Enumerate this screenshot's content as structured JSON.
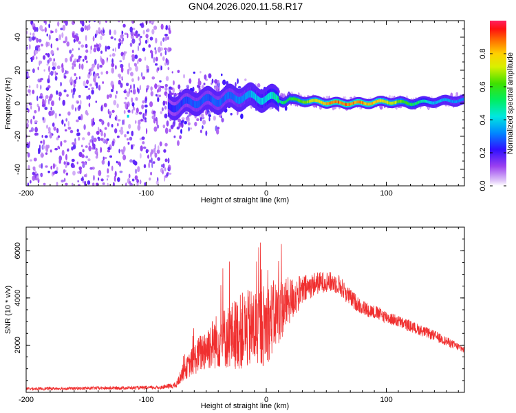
{
  "title": "GN04.2026.020.11.58.R17",
  "chart_data": [
    {
      "type": "heatmap",
      "name": "spectrogram",
      "xlabel": "Height of straight line (km)",
      "ylabel": "Frequency (Hz)",
      "xlim": [
        -200,
        165
      ],
      "ylim": [
        -50,
        50
      ],
      "xticks": [
        -200,
        -100,
        0,
        100
      ],
      "xtick_labels": [
        "-200",
        "-100",
        "0",
        "100"
      ],
      "yticks": [
        -40,
        -20,
        0,
        20,
        40
      ],
      "ytick_labels": [
        "-40",
        "-20",
        "0",
        "20",
        "40"
      ],
      "colorbar": {
        "label": "Normalized spectral amplitude",
        "range": [
          0,
          1
        ],
        "ticks": [
          0,
          0.2,
          0.4,
          0.6,
          0.8
        ],
        "tick_labels": [
          "0.0",
          "0.2",
          "0.4",
          "0.6",
          "0.8"
        ]
      },
      "signal_track": {
        "description_x": [
          -80,
          -60,
          -40,
          -20,
          0,
          20,
          40,
          60,
          80,
          100,
          120,
          140,
          165
        ],
        "frequency_hz": [
          -2,
          1,
          2,
          4,
          3,
          2,
          1,
          0,
          0,
          1,
          0,
          1,
          2
        ],
        "peak_amplitude": [
          0.25,
          0.3,
          0.3,
          0.35,
          0.45,
          0.6,
          0.8,
          0.95,
          0.9,
          0.8,
          0.6,
          0.4,
          0.35
        ]
      }
    },
    {
      "type": "line",
      "name": "snr",
      "xlabel": "Height of straight line (km)",
      "ylabel": "SNR (10 * v/v)",
      "xlim": [
        -200,
        165
      ],
      "ylim": [
        0,
        7000
      ],
      "xticks": [
        -200,
        -100,
        0,
        100
      ],
      "xtick_labels": [
        "-200",
        "-100",
        "0",
        "100"
      ],
      "yticks": [
        2000,
        4000,
        6000
      ],
      "ytick_labels": [
        "2000",
        "4000",
        "6000"
      ],
      "color": "#f03030",
      "envelope": {
        "x": [
          -200,
          -90,
          -75,
          -70,
          -60,
          -50,
          -40,
          -30,
          -20,
          -10,
          0,
          10,
          20,
          30,
          40,
          50,
          60,
          70,
          80,
          100,
          120,
          140,
          165
        ],
        "mean": [
          150,
          200,
          300,
          800,
          1400,
          1900,
          2200,
          2400,
          2600,
          2700,
          2900,
          3400,
          3900,
          4300,
          4600,
          4700,
          4600,
          4000,
          3600,
          3200,
          2800,
          2400,
          1800
        ],
        "spread": [
          120,
          130,
          250,
          600,
          1200,
          1800,
          2200,
          2600,
          3000,
          3200,
          3200,
          2600,
          1800,
          1200,
          900,
          800,
          800,
          700,
          600,
          500,
          450,
          400,
          300
        ]
      }
    }
  ]
}
